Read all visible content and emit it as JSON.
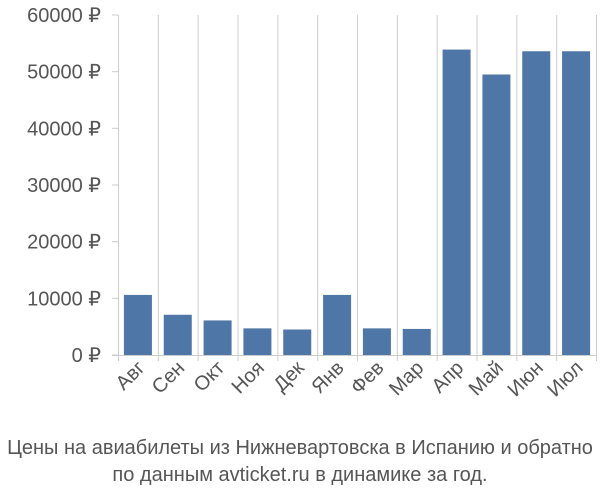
{
  "chart_data": {
    "type": "bar",
    "title": "",
    "xlabel": "",
    "ylabel": "",
    "categories": [
      "Авг",
      "Сен",
      "Окт",
      "Ноя",
      "Дек",
      "Янв",
      "Фев",
      "Мар",
      "Апр",
      "Май",
      "Июн",
      "Июл"
    ],
    "values": [
      10600,
      7100,
      6100,
      4700,
      4500,
      10600,
      4700,
      4600,
      53900,
      49500,
      53600,
      53600
    ],
    "ylim": [
      0,
      60000
    ],
    "yticks": [
      0,
      10000,
      20000,
      30000,
      40000,
      50000,
      60000
    ],
    "ytick_labels": [
      "0 ₽",
      "10000 ₽",
      "20000 ₽",
      "30000 ₽",
      "40000 ₽",
      "50000 ₽",
      "60000 ₽"
    ],
    "grid": "vertical",
    "bar_color": "#4e76a6",
    "grid_color": "#cccccc",
    "text_color": "#555555"
  },
  "caption": {
    "line1": "Цены на авиабилеты из Нижневартовска в Испанию и обратно",
    "line2": "по данным avticket.ru в динамике за год."
  }
}
